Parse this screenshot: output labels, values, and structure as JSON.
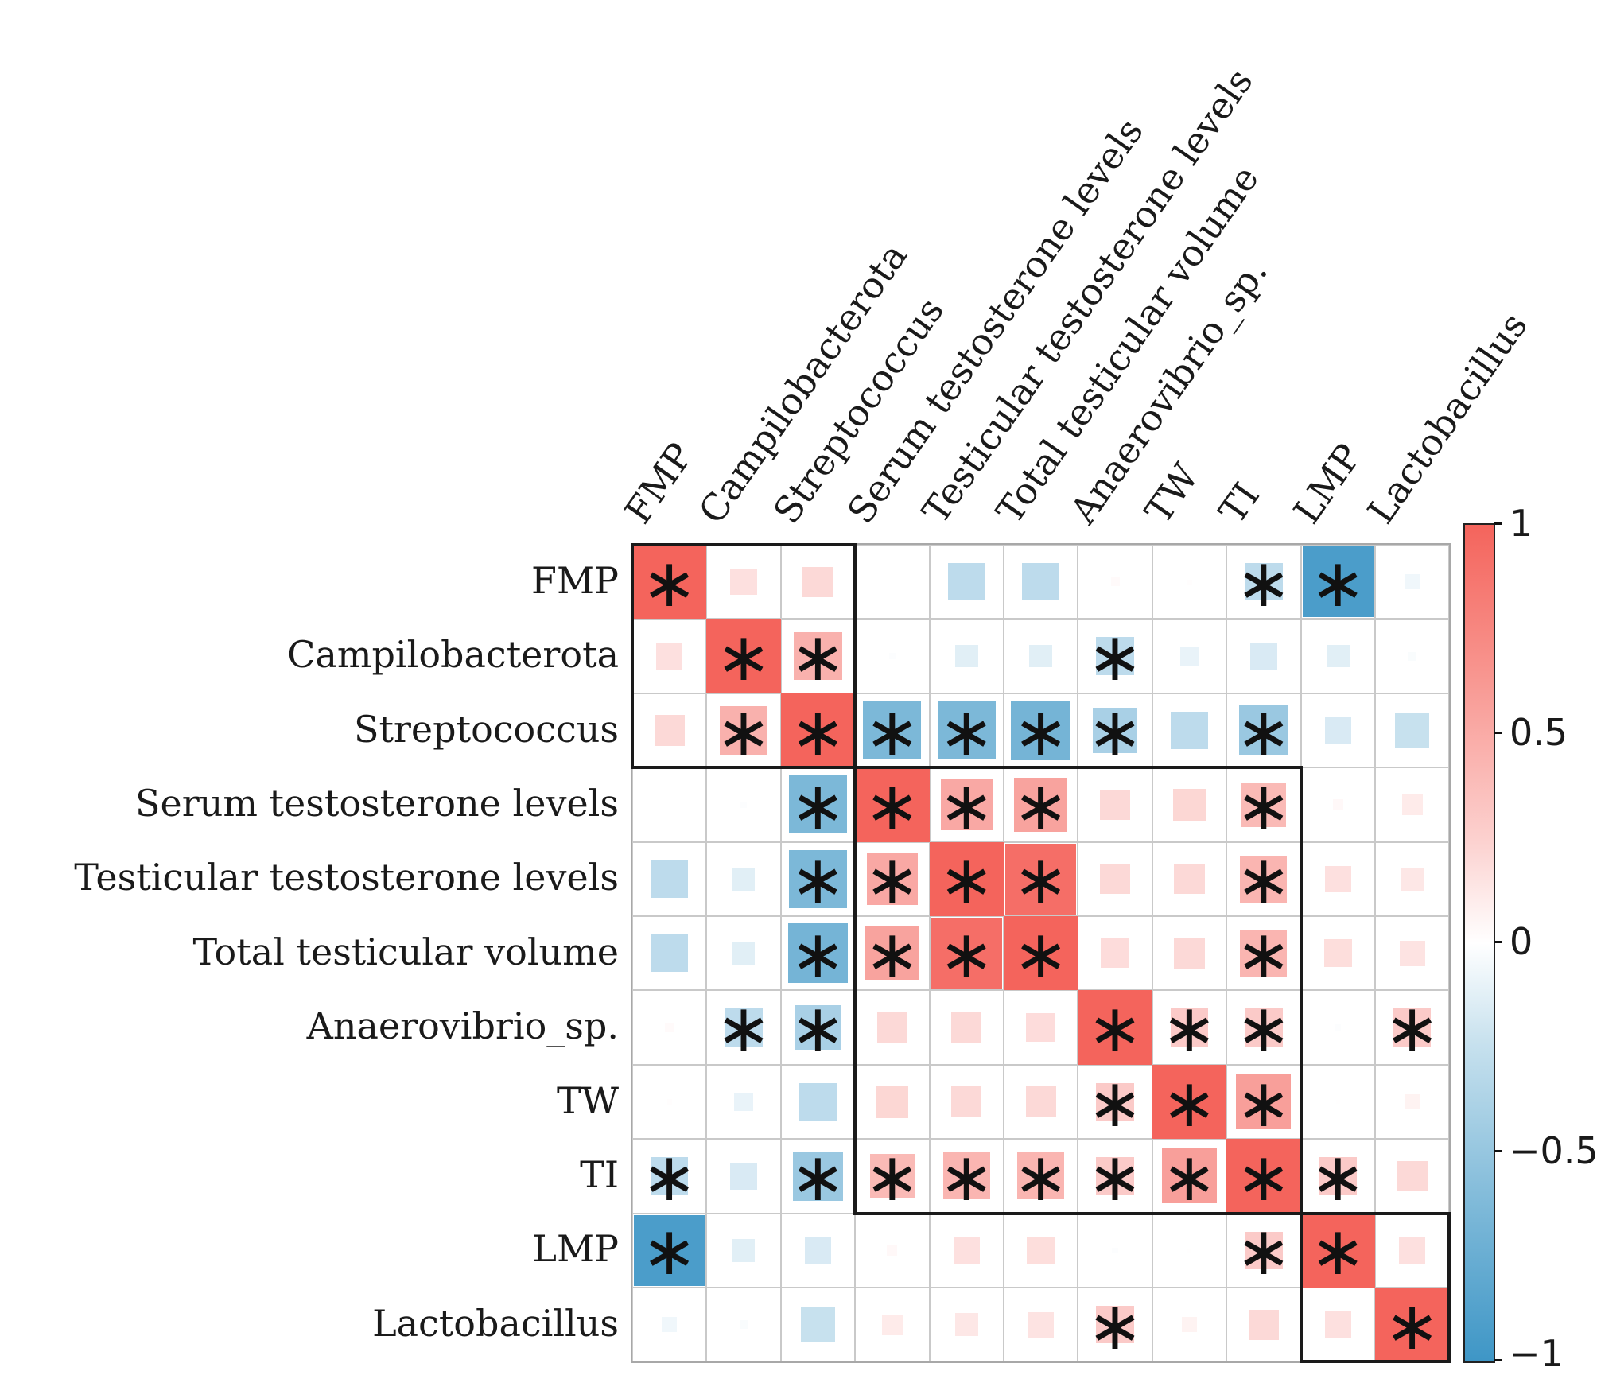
{
  "chart_data": {
    "type": "heatmap",
    "subtype": "correlation-matrix-squares",
    "title": "",
    "xlabel": "",
    "ylabel": "",
    "legend_position": "right-colorbar",
    "grid": true,
    "variables": [
      "FMP",
      "Campilobacterota",
      "Streptococcus",
      "Serum testosterone levels",
      "Testicular testosterone levels",
      "Total testicular volume",
      "Anaerovibrio_sp.",
      "TW",
      "TI",
      "LMP",
      "Lactobacillus"
    ],
    "matrix": [
      [
        1.0,
        0.3,
        0.35,
        0.0,
        -0.45,
        -0.45,
        0.08,
        0.04,
        -0.45,
        -0.95,
        -0.15
      ],
      [
        0.3,
        1.0,
        0.6,
        -0.05,
        -0.25,
        -0.25,
        -0.45,
        -0.2,
        -0.3,
        -0.25,
        -0.08
      ],
      [
        0.35,
        0.6,
        1.0,
        -0.75,
        -0.75,
        -0.78,
        -0.55,
        -0.45,
        -0.62,
        -0.3,
        -0.4
      ],
      [
        0.0,
        -0.05,
        -0.75,
        1.0,
        0.65,
        0.68,
        0.35,
        0.37,
        0.55,
        0.1,
        0.22
      ],
      [
        -0.45,
        -0.25,
        -0.75,
        0.65,
        1.0,
        0.95,
        0.35,
        0.35,
        0.58,
        0.3,
        0.25
      ],
      [
        -0.45,
        -0.25,
        -0.78,
        0.68,
        0.95,
        1.0,
        0.33,
        0.35,
        0.58,
        0.32,
        0.28
      ],
      [
        0.08,
        -0.45,
        -0.55,
        0.35,
        0.35,
        0.33,
        1.0,
        0.45,
        0.45,
        -0.05,
        0.45
      ],
      [
        0.04,
        -0.2,
        -0.45,
        0.37,
        0.35,
        0.35,
        0.45,
        1.0,
        0.7,
        0.03,
        0.15
      ],
      [
        -0.45,
        -0.3,
        -0.62,
        0.55,
        0.58,
        0.58,
        0.45,
        0.7,
        1.0,
        0.45,
        0.35
      ],
      [
        -0.95,
        -0.25,
        -0.3,
        0.1,
        0.3,
        0.32,
        -0.05,
        0.03,
        0.45,
        1.0,
        0.3
      ],
      [
        -0.15,
        -0.08,
        -0.4,
        0.22,
        0.25,
        0.28,
        0.45,
        0.15,
        0.35,
        0.3,
        1.0
      ]
    ],
    "significant": [
      [
        1,
        0,
        0,
        0,
        0,
        0,
        0,
        0,
        1,
        1,
        0
      ],
      [
        0,
        1,
        1,
        0,
        0,
        0,
        1,
        0,
        0,
        0,
        0
      ],
      [
        0,
        1,
        1,
        1,
        1,
        1,
        1,
        0,
        1,
        0,
        0
      ],
      [
        0,
        0,
        1,
        1,
        1,
        1,
        0,
        0,
        1,
        0,
        0
      ],
      [
        0,
        0,
        1,
        1,
        1,
        1,
        0,
        0,
        1,
        0,
        0
      ],
      [
        0,
        0,
        1,
        1,
        1,
        1,
        0,
        0,
        1,
        0,
        0
      ],
      [
        0,
        1,
        1,
        0,
        0,
        0,
        1,
        1,
        1,
        0,
        1
      ],
      [
        0,
        0,
        0,
        0,
        0,
        0,
        1,
        1,
        1,
        0,
        0
      ],
      [
        1,
        0,
        1,
        1,
        1,
        1,
        1,
        1,
        1,
        1,
        0
      ],
      [
        1,
        0,
        0,
        0,
        0,
        0,
        0,
        0,
        1,
        1,
        0
      ],
      [
        0,
        0,
        0,
        0,
        0,
        0,
        1,
        0,
        0,
        0,
        1
      ]
    ],
    "significance_marker": "∗",
    "cluster_boxes": [
      {
        "row_start": 0,
        "col_start": 0,
        "row_end": 2,
        "col_end": 2
      },
      {
        "row_start": 3,
        "col_start": 3,
        "row_end": 8,
        "col_end": 8
      },
      {
        "row_start": 9,
        "col_start": 9,
        "row_end": 10,
        "col_end": 10
      }
    ],
    "colorbar": {
      "min": -1,
      "max": 1,
      "tick_values": [
        1,
        0.5,
        0,
        -0.5,
        -1
      ],
      "tick_labels": [
        "1",
        "0.5",
        "0",
        "−0.5",
        "−1"
      ]
    },
    "colors": {
      "positive_max": "#f4645c",
      "negative_max": "#3e96c6",
      "zero": "#ffffff",
      "gridline": "#c9c9c9",
      "matrix_border": "#a8a8a8",
      "cluster_box": "#1a1a1a",
      "marker": "#111111"
    }
  }
}
